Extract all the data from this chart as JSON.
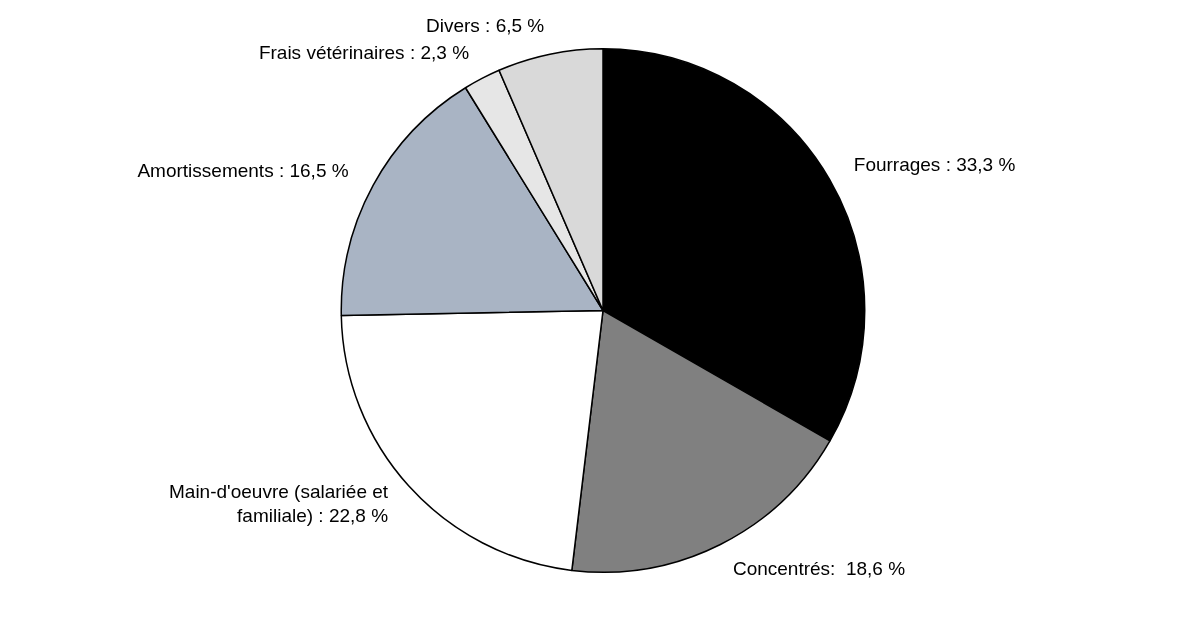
{
  "chart_data": {
    "type": "pie",
    "categories": [
      "Fourrages : 33,3 %",
      "Concentrés:  18,6 %",
      "Main-d'oeuvre (salariée et familiale) : 22,8 %",
      "Amortissements : 16,5 %",
      "Frais vétérinaires : 2,3 %",
      "Divers : 6,5 %"
    ],
    "values": [
      33.3,
      18.6,
      22.8,
      16.5,
      2.3,
      6.5
    ],
    "colors": [
      "#000000",
      "#808080",
      "#ffffff",
      "#a9b4c4",
      "#e6e6e6",
      "#d9d9d9"
    ],
    "legend": false
  }
}
